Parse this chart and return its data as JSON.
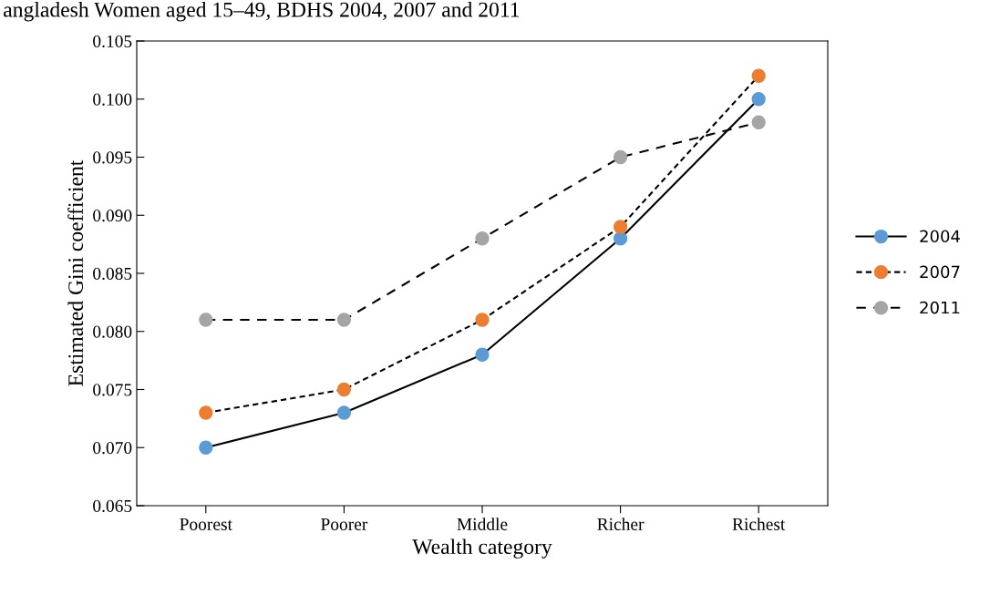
{
  "chart_data": {
    "type": "line",
    "title": "angladesh Women aged 15–49, BDHS 2004, 2007 and 2011",
    "xlabel": "Wealth category",
    "ylabel": "Estimated Gini coefficient",
    "categories": [
      "Poorest",
      "Poorer",
      "Middle",
      "Richer",
      "Richest"
    ],
    "series": [
      {
        "name": "2004",
        "color": "#5b9bd5",
        "line_style": "solid",
        "values": [
          0.07,
          0.073,
          0.078,
          0.088,
          0.1
        ]
      },
      {
        "name": "2007",
        "color": "#ed7d31",
        "line_style": "dotted",
        "values": [
          0.073,
          0.075,
          0.081,
          0.089,
          0.102
        ]
      },
      {
        "name": "2011",
        "color": "#a5a5a5",
        "line_style": "dashed",
        "values": [
          0.081,
          0.081,
          0.088,
          0.095,
          0.098
        ]
      }
    ],
    "ylim": [
      0.065,
      0.105
    ],
    "yticks": [
      {
        "value": 0.065,
        "label": "0.065"
      },
      {
        "value": 0.07,
        "label": "0.070"
      },
      {
        "value": 0.075,
        "label": "0.075"
      },
      {
        "value": 0.08,
        "label": "0.080"
      },
      {
        "value": 0.085,
        "label": "0.085"
      },
      {
        "value": 0.09,
        "label": "0.090"
      },
      {
        "value": 0.095,
        "label": "0.095"
      },
      {
        "value": 0.1,
        "label": "0.100"
      },
      {
        "value": 0.105,
        "label": "0.105"
      }
    ],
    "grid": false,
    "legend": "right",
    "marker": "circle"
  }
}
